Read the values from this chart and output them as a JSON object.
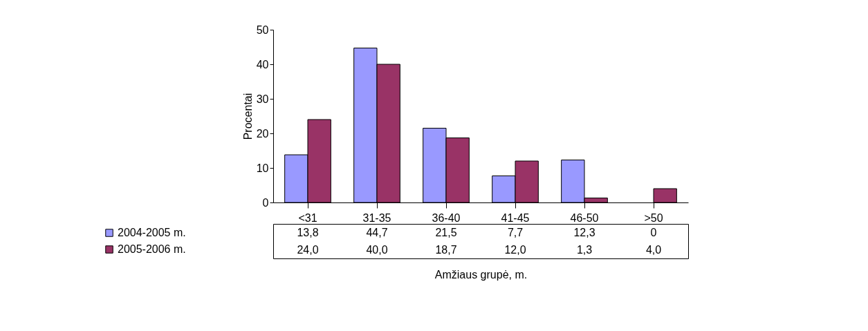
{
  "chart_data": {
    "type": "bar",
    "xlabel": "Amžiaus grupė, m.",
    "ylabel": "Procentai",
    "categories": [
      "<31",
      "31-35",
      "36-40",
      "41-45",
      "46-50",
      ">50"
    ],
    "series": [
      {
        "name": "2004-2005 m.",
        "color": "#9999ff",
        "values": [
          13.8,
          44.7,
          21.5,
          7.7,
          12.3,
          0
        ],
        "value_labels": [
          "13,8",
          "44,7",
          "21,5",
          "7,7",
          "12,3",
          "0"
        ]
      },
      {
        "name": "2005-2006 m.",
        "color": "#993366",
        "values": [
          24.0,
          40.0,
          18.7,
          12.0,
          1.3,
          4.0
        ],
        "value_labels": [
          "24,0",
          "40,0",
          "18,7",
          "12,0",
          "1,3",
          "4,0"
        ]
      }
    ],
    "ylim": [
      0,
      50
    ],
    "yticks": [
      0,
      10,
      20,
      30,
      40,
      50
    ],
    "grid": false,
    "legend": "bottom"
  }
}
